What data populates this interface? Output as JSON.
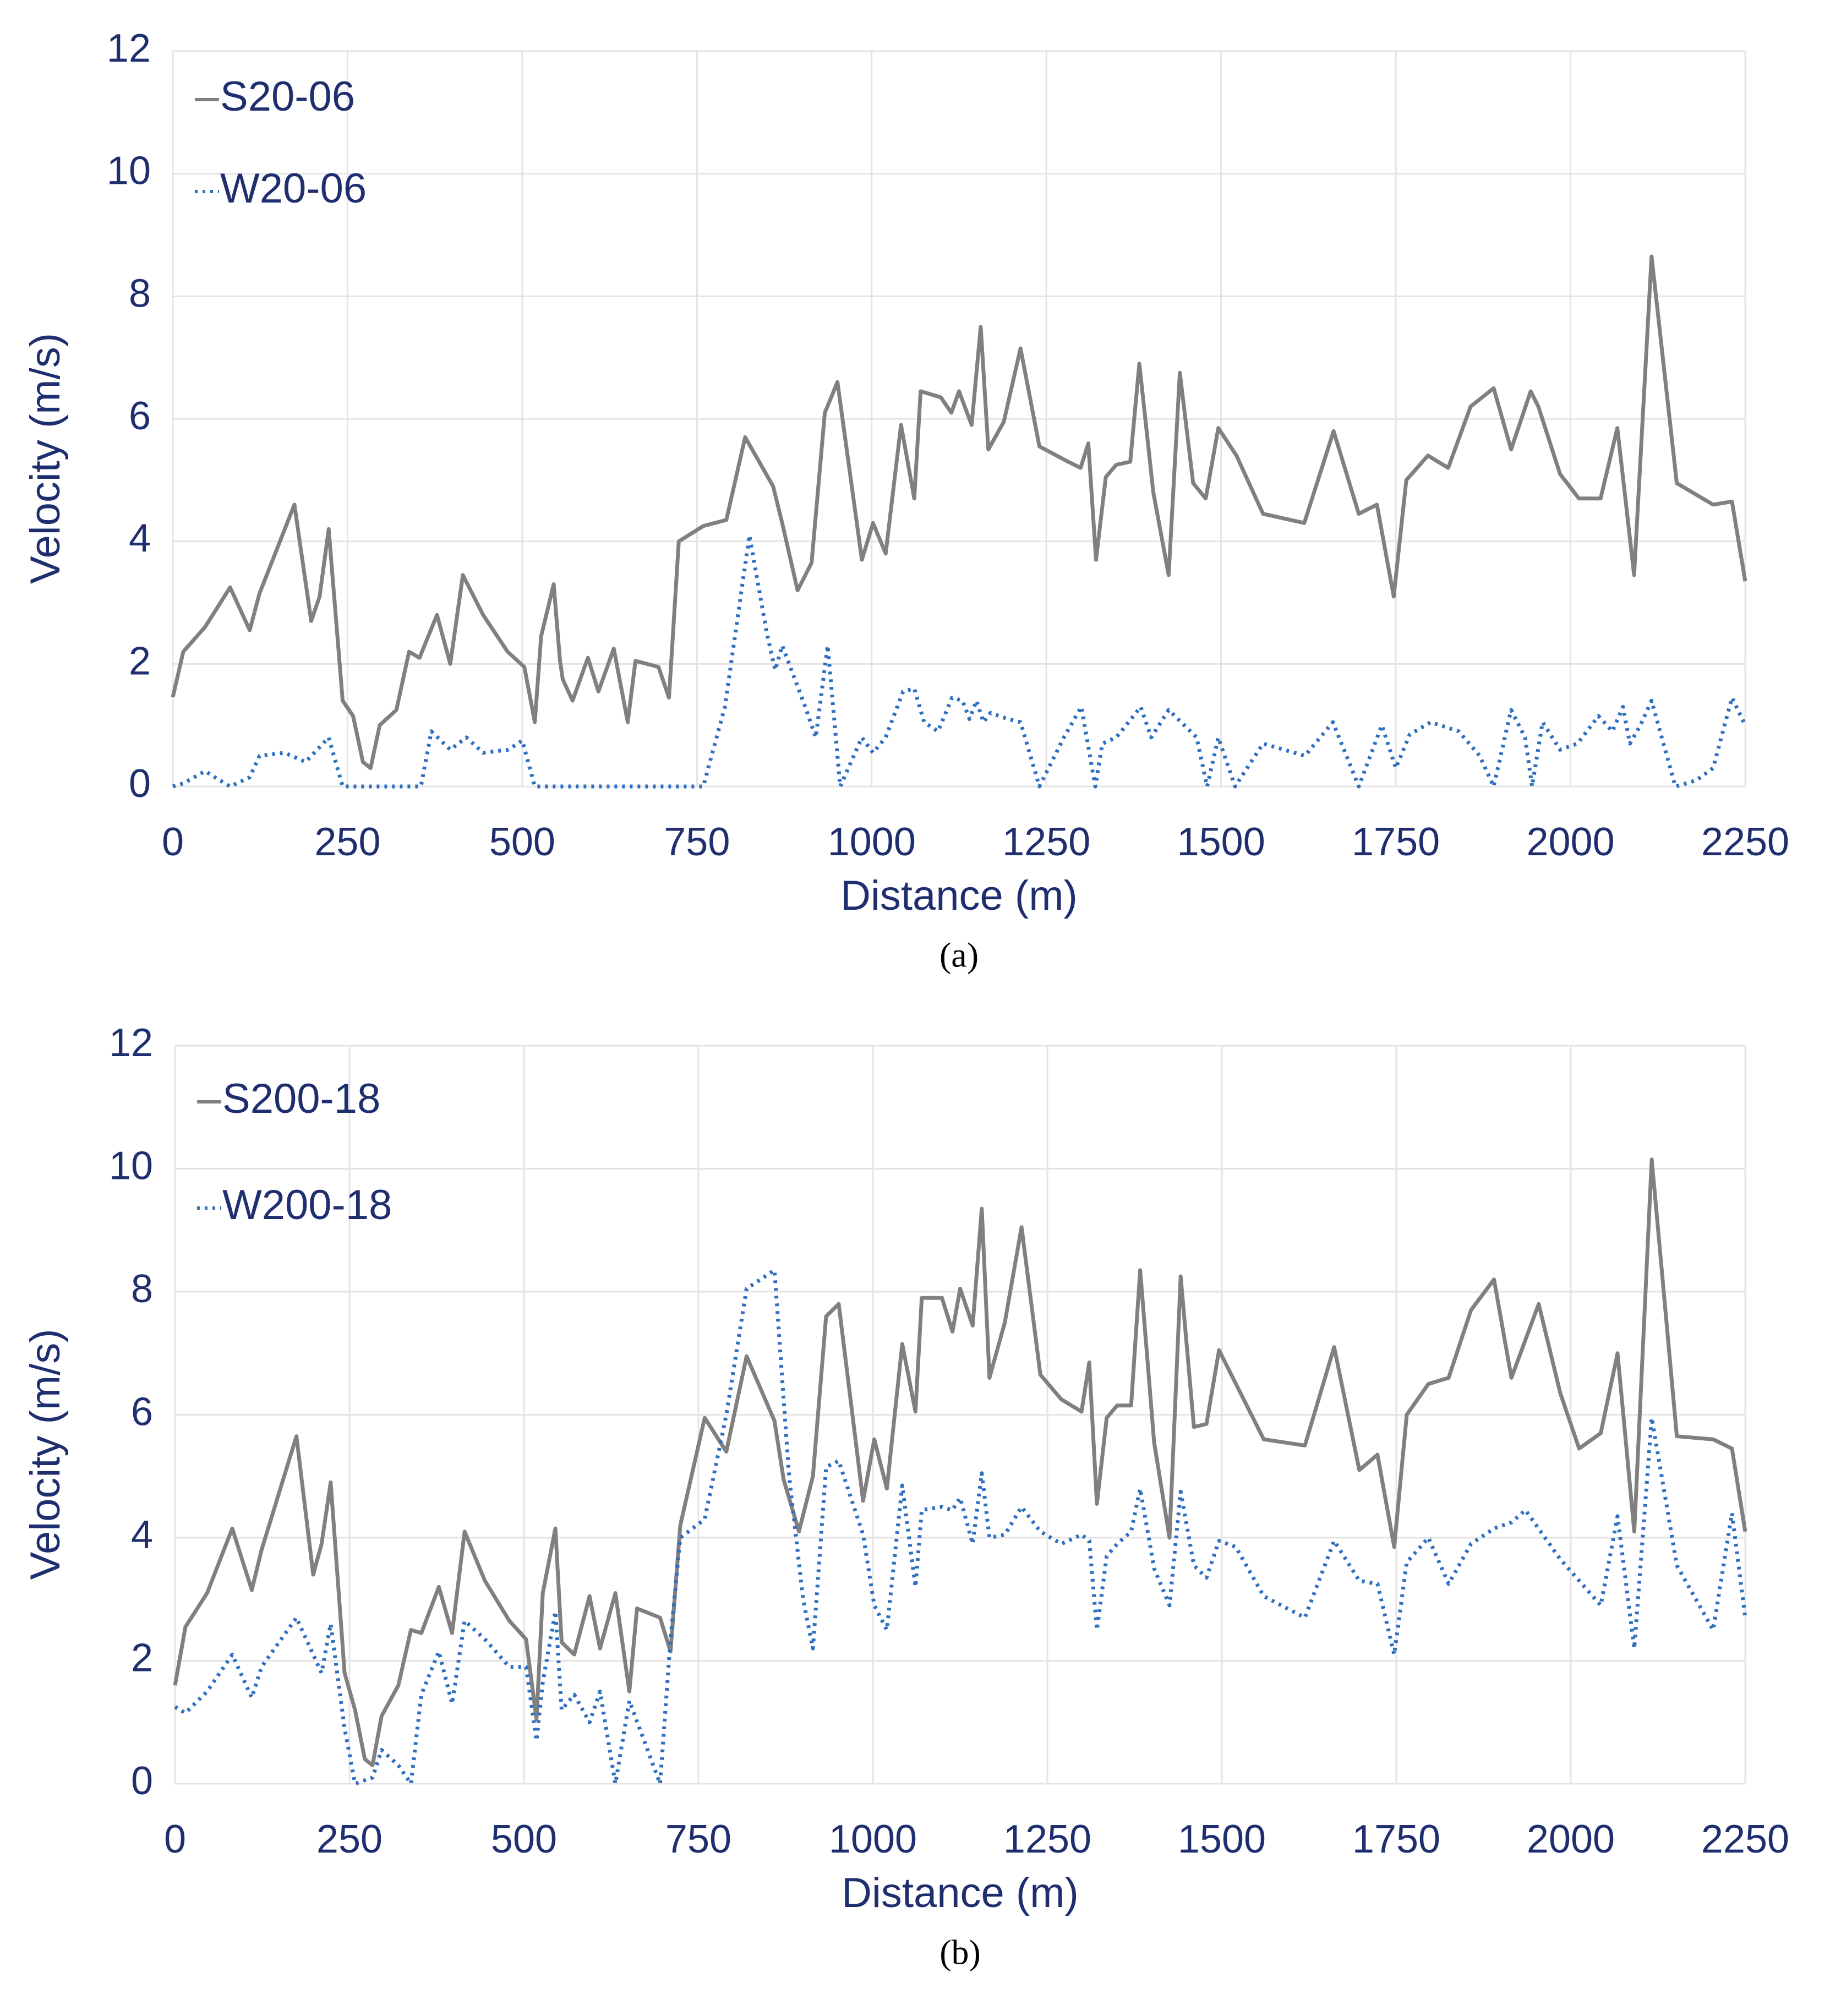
{
  "chart_data": [
    {
      "type": "line",
      "caption": "(a)",
      "xlabel": "Distance (m)",
      "ylabel": "Velocity (m/s)",
      "xlim": [
        0,
        2250
      ],
      "xticks": [
        0,
        250,
        500,
        750,
        1000,
        1250,
        1500,
        1750,
        2000,
        2250
      ],
      "ylim": [
        0,
        12
      ],
      "yticks": [
        0,
        2,
        4,
        6,
        8,
        10,
        12
      ],
      "grid": true,
      "legend": "upper left",
      "series": [
        {
          "name": "S20-06",
          "color": "#808080",
          "dash": "solid",
          "x": [
            0,
            15,
            46,
            82,
            110,
            124,
            174,
            198,
            210,
            223,
            243,
            258,
            272,
            283,
            296,
            320,
            338,
            353,
            378,
            397,
            415,
            444,
            479,
            503,
            518,
            527,
            545,
            554,
            558,
            572,
            594,
            609,
            631,
            651,
            662,
            695,
            710,
            724,
            759,
            792,
            819,
            859,
            872,
            894,
            914,
            933,
            951,
            986,
            1002,
            1020,
            1042,
            1061,
            1070,
            1099,
            1114,
            1125,
            1143,
            1156,
            1167,
            1189,
            1213,
            1240,
            1281,
            1299,
            1310,
            1321,
            1335,
            1350,
            1370,
            1383,
            1403,
            1425,
            1441,
            1460,
            1478,
            1496,
            1522,
            1560,
            1619,
            1661,
            1697,
            1723,
            1747,
            1765,
            1796,
            1825,
            1857,
            1890,
            1915,
            1943,
            1954,
            1985,
            2012,
            2043,
            2067,
            2091,
            2116,
            2152,
            2204,
            2231,
            2250
          ],
          "values": [
            1.46,
            2.2,
            2.6,
            3.25,
            2.55,
            3.15,
            4.6,
            2.7,
            3.1,
            4.2,
            1.4,
            1.15,
            0.4,
            0.3,
            1.0,
            1.25,
            2.2,
            2.1,
            2.8,
            2.0,
            3.45,
            2.8,
            2.2,
            1.95,
            1.05,
            2.45,
            3.3,
            2.05,
            1.75,
            1.4,
            2.1,
            1.55,
            2.25,
            1.05,
            2.05,
            1.95,
            1.45,
            4.0,
            4.25,
            4.35,
            5.7,
            4.9,
            4.3,
            3.2,
            3.65,
            6.1,
            6.6,
            3.7,
            4.3,
            3.8,
            5.9,
            4.7,
            6.45,
            6.35,
            6.1,
            6.45,
            5.9,
            7.5,
            5.5,
            5.95,
            7.15,
            5.55,
            5.3,
            5.2,
            5.6,
            3.7,
            5.05,
            5.25,
            5.3,
            6.9,
            4.8,
            3.45,
            6.75,
            4.95,
            4.7,
            5.85,
            5.4,
            4.45,
            4.3,
            5.8,
            4.45,
            4.6,
            3.1,
            5.0,
            5.4,
            5.2,
            6.2,
            6.5,
            5.5,
            6.45,
            6.2,
            5.1,
            4.7,
            4.7,
            5.85,
            3.45,
            8.65,
            4.95,
            4.6,
            4.65,
            3.35
          ]
        },
        {
          "name": "W20-06",
          "color": "#2e6fc0",
          "dash": "dotted",
          "x": [
            0,
            15,
            46,
            82,
            110,
            124,
            160,
            190,
            223,
            243,
            300,
            355,
            370,
            397,
            420,
            444,
            480,
            500,
            518,
            600,
            700,
            759,
            790,
            825,
            850,
            862,
            872,
            905,
            920,
            937,
            955,
            986,
            1002,
            1020,
            1045,
            1061,
            1075,
            1095,
            1115,
            1130,
            1140,
            1150,
            1160,
            1170,
            1195,
            1213,
            1240,
            1275,
            1300,
            1320,
            1330,
            1350,
            1385,
            1400,
            1425,
            1465,
            1480,
            1496,
            1520,
            1560,
            1620,
            1660,
            1697,
            1730,
            1750,
            1770,
            1800,
            1840,
            1870,
            1890,
            1915,
            1935,
            1945,
            1960,
            1985,
            2010,
            2040,
            2060,
            2075,
            2085,
            2100,
            2116,
            2150,
            2180,
            2204,
            2231,
            2250
          ],
          "values": [
            0,
            0.05,
            0.25,
            0,
            0.15,
            0.5,
            0.55,
            0.4,
            0.8,
            0,
            0,
            0,
            0.9,
            0.6,
            0.8,
            0.55,
            0.6,
            0.75,
            0,
            0,
            0,
            0,
            1.3,
            4.1,
            2.5,
            1.9,
            2.3,
            1.3,
            0.8,
            2.3,
            0,
            0.8,
            0.55,
            0.8,
            1.55,
            1.6,
            1.05,
            0.9,
            1.45,
            1.4,
            1.1,
            1.4,
            1.05,
            1.2,
            1.1,
            1.05,
            0,
            0.8,
            1.3,
            0,
            0.7,
            0.8,
            1.3,
            0.8,
            1.25,
            0.8,
            0,
            0.8,
            0,
            0.7,
            0.5,
            1.05,
            0,
            1.0,
            0.3,
            0.85,
            1.05,
            0.9,
            0.5,
            0,
            1.25,
            0.8,
            0,
            1.05,
            0.6,
            0.7,
            1.15,
            0.9,
            1.3,
            0.7,
            1.0,
            1.4,
            0,
            0.1,
            0.3,
            1.45,
            1.0
          ]
        }
      ]
    },
    {
      "type": "line",
      "caption": "(b)",
      "xlabel": "Distance (m)",
      "ylabel": "Velocity (m/s)",
      "xlim": [
        0,
        2250
      ],
      "xticks": [
        0,
        250,
        500,
        750,
        1000,
        1250,
        1500,
        1750,
        2000,
        2250
      ],
      "ylim": [
        0,
        12
      ],
      "yticks": [
        0,
        2,
        4,
        6,
        8,
        10,
        12
      ],
      "grid": true,
      "legend": "upper left",
      "series": [
        {
          "name": "S200-18",
          "color": "#808080",
          "dash": "solid",
          "x": [
            0,
            15,
            46,
            82,
            110,
            124,
            174,
            198,
            210,
            223,
            243,
            258,
            272,
            283,
            296,
            320,
            338,
            353,
            378,
            397,
            415,
            444,
            479,
            503,
            518,
            527,
            545,
            554,
            572,
            594,
            609,
            631,
            651,
            662,
            695,
            710,
            724,
            759,
            790,
            819,
            859,
            872,
            894,
            914,
            933,
            951,
            986,
            1002,
            1020,
            1042,
            1061,
            1070,
            1099,
            1114,
            1125,
            1143,
            1156,
            1167,
            1189,
            1213,
            1240,
            1270,
            1299,
            1310,
            1321,
            1335,
            1350,
            1370,
            1383,
            1403,
            1425,
            1441,
            1460,
            1478,
            1496,
            1560,
            1619,
            1661,
            1697,
            1723,
            1747,
            1765,
            1796,
            1825,
            1857,
            1890,
            1915,
            1954,
            1985,
            2012,
            2043,
            2067,
            2091,
            2116,
            2152,
            2204,
            2231,
            2250
          ],
          "values": [
            1.6,
            2.55,
            3.1,
            4.15,
            3.15,
            3.8,
            5.65,
            3.4,
            3.9,
            4.9,
            1.8,
            1.2,
            0.4,
            0.3,
            1.1,
            1.6,
            2.5,
            2.45,
            3.2,
            2.45,
            4.1,
            3.3,
            2.65,
            2.35,
            1.05,
            3.1,
            4.15,
            2.3,
            2.1,
            3.05,
            2.2,
            3.1,
            1.5,
            2.85,
            2.7,
            2.15,
            4.2,
            5.95,
            5.4,
            6.95,
            5.9,
            4.95,
            4.1,
            5.0,
            7.6,
            7.8,
            4.6,
            5.6,
            4.8,
            7.15,
            6.05,
            7.9,
            7.9,
            7.35,
            8.05,
            7.45,
            9.35,
            6.6,
            7.5,
            9.05,
            6.65,
            6.25,
            6.05,
            6.85,
            4.55,
            5.95,
            6.15,
            6.15,
            8.35,
            5.55,
            4.0,
            8.25,
            5.8,
            5.85,
            7.05,
            5.6,
            5.5,
            7.1,
            5.1,
            5.35,
            3.85,
            6.0,
            6.5,
            6.6,
            7.7,
            8.2,
            6.6,
            7.8,
            6.35,
            5.45,
            5.7,
            7.0,
            4.1,
            10.15,
            5.65,
            5.6,
            5.45,
            4.1
          ]
        },
        {
          "name": "W200-18",
          "color": "#2e6fc0",
          "dash": "dotted",
          "x": [
            0,
            15,
            46,
            82,
            110,
            124,
            174,
            210,
            223,
            243,
            258,
            283,
            296,
            320,
            338,
            353,
            378,
            397,
            415,
            444,
            479,
            503,
            518,
            527,
            545,
            554,
            572,
            594,
            609,
            631,
            651,
            695,
            710,
            724,
            759,
            790,
            819,
            859,
            880,
            900,
            914,
            933,
            951,
            986,
            1002,
            1020,
            1042,
            1061,
            1070,
            1099,
            1114,
            1125,
            1143,
            1156,
            1167,
            1189,
            1213,
            1240,
            1270,
            1299,
            1310,
            1321,
            1335,
            1350,
            1370,
            1383,
            1403,
            1425,
            1441,
            1460,
            1478,
            1496,
            1520,
            1560,
            1619,
            1661,
            1697,
            1723,
            1747,
            1765,
            1796,
            1825,
            1857,
            1890,
            1915,
            1935,
            1985,
            2043,
            2067,
            2091,
            2116,
            2152,
            2204,
            2231,
            2250
          ],
          "values": [
            1.25,
            1.15,
            1.5,
            2.1,
            1.4,
            1.9,
            2.7,
            1.8,
            2.6,
            0.9,
            0,
            0.1,
            0.55,
            0.3,
            0,
            1.45,
            2.15,
            1.3,
            2.65,
            2.35,
            1.9,
            1.9,
            0.7,
            1.65,
            2.8,
            1.2,
            1.45,
            1.0,
            1.5,
            0,
            1.35,
            0,
            2.35,
            4.0,
            4.3,
            6.0,
            8.05,
            8.35,
            5.0,
            3.0,
            2.2,
            5.15,
            5.25,
            4.05,
            2.9,
            2.5,
            4.85,
            3.2,
            4.45,
            4.5,
            4.45,
            4.65,
            3.9,
            5.05,
            4.0,
            4.05,
            4.5,
            4.1,
            3.9,
            4.05,
            3.95,
            2.5,
            3.7,
            3.9,
            4.1,
            4.8,
            3.5,
            2.9,
            4.75,
            3.55,
            3.35,
            3.95,
            3.85,
            3.05,
            2.7,
            3.95,
            3.3,
            3.25,
            2.1,
            3.6,
            4.0,
            3.25,
            3.9,
            4.15,
            4.25,
            4.45,
            3.65,
            2.9,
            4.35,
            2.2,
            5.95,
            3.55,
            2.5,
            4.4,
            2.7
          ]
        }
      ]
    }
  ]
}
